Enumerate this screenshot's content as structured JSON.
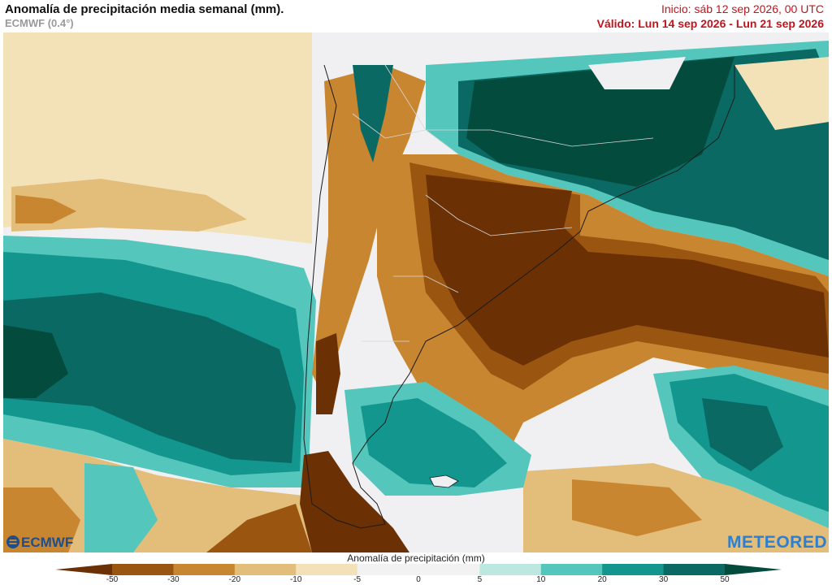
{
  "header": {
    "title": "Anomalía de precipitación media semanal (mm).",
    "model": "ECMWF (0.4°)",
    "init": "Inicio:  sáb 12 sep 2026, 00 UTC",
    "valid": "Válido: Lun 14 sep 2026 - Lun 21 sep 2026"
  },
  "logos": {
    "left": "ECMWF",
    "right": "METEORED"
  },
  "legend": {
    "title": "Anomalía de precipitación (mm)",
    "ticks": [
      "-50",
      "-30",
      "-20",
      "-10",
      "-5",
      "0",
      "5",
      "10",
      "20",
      "30",
      "50"
    ],
    "colors": [
      "#6b3104",
      "#9a5510",
      "#c98630",
      "#e3bd7a",
      "#f3e2b8",
      "#f2f2f2",
      "#f2f2f2",
      "#bde8e2",
      "#55c6bc",
      "#13968e",
      "#0a6a63",
      "#034b3c"
    ]
  },
  "colors": {
    "dry_strong": "#6b3104",
    "dry_mid": "#9a5510",
    "dry_light": "#c98630",
    "dry_faint": "#f3e2b8",
    "neutral": "#f0f0f2",
    "wet_faint": "#bde8e2",
    "wet_light": "#55c6bc",
    "wet_mid": "#13968e",
    "wet_strong": "#034b3c",
    "title_red": "#c0141c"
  }
}
